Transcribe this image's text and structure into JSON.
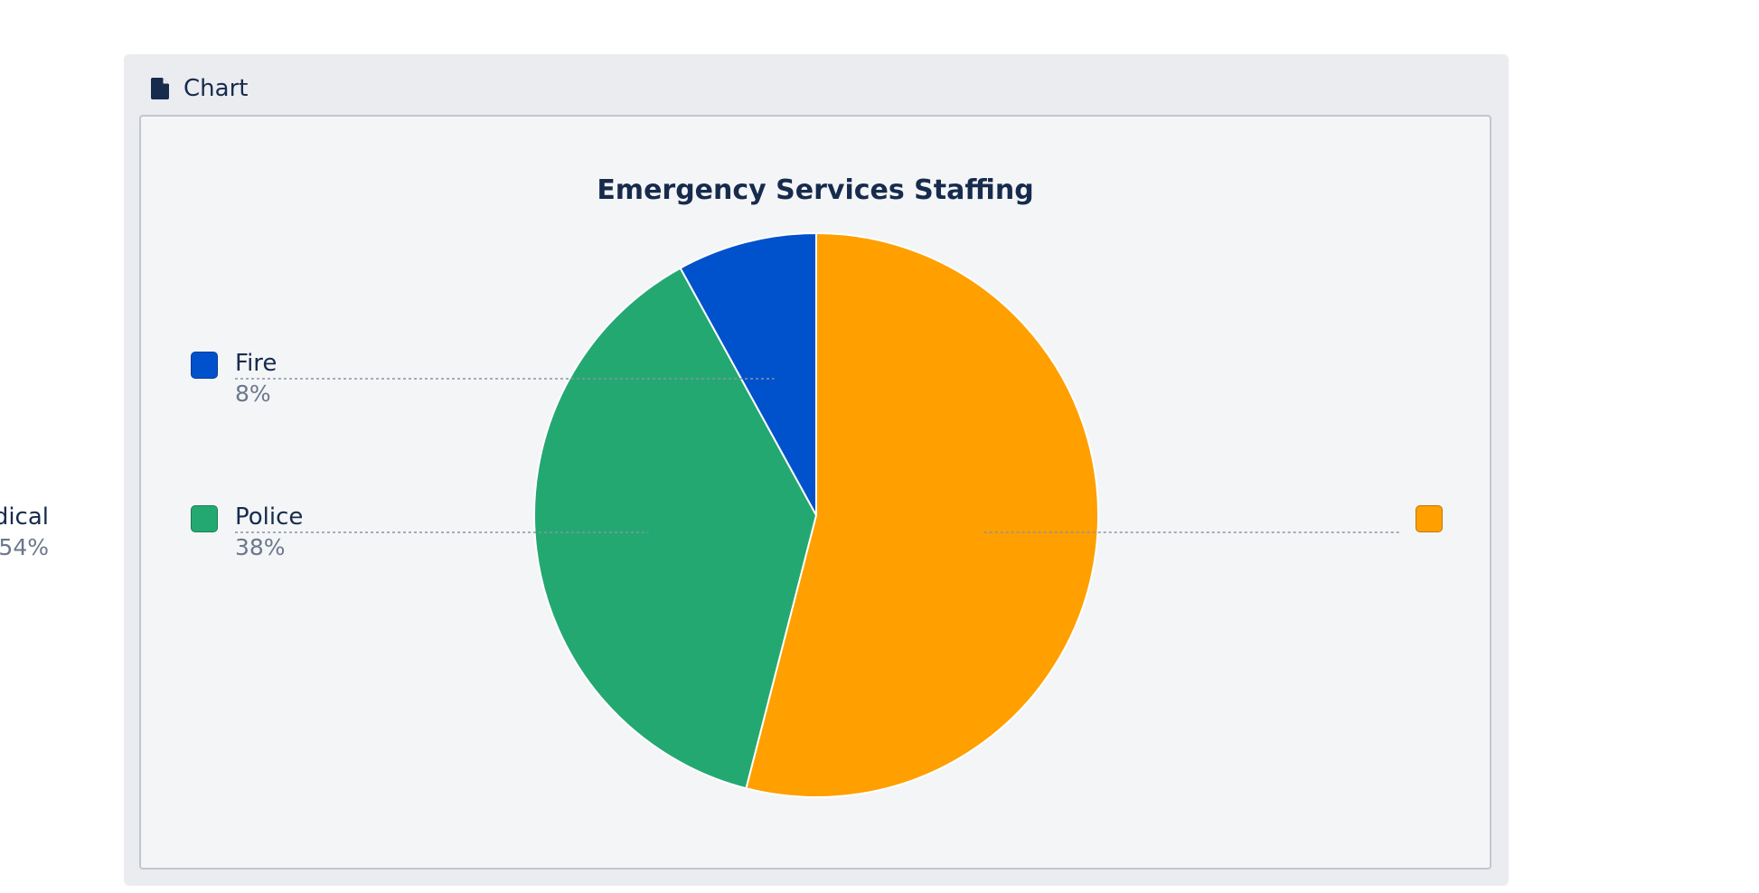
{
  "panel": {
    "title": "Chart",
    "icon": "document-icon"
  },
  "chart_data": {
    "type": "pie",
    "title": "Emergency Services Staffing",
    "slices": [
      {
        "label": "Medical",
        "value": 54,
        "percent_label": "54%",
        "color": "#ff9f00"
      },
      {
        "label": "Police",
        "value": 38,
        "percent_label": "38%",
        "color": "#24a872"
      },
      {
        "label": "Fire",
        "value": 8,
        "percent_label": "8%",
        "color": "#0052cc"
      }
    ],
    "legend": "left-and-right"
  }
}
